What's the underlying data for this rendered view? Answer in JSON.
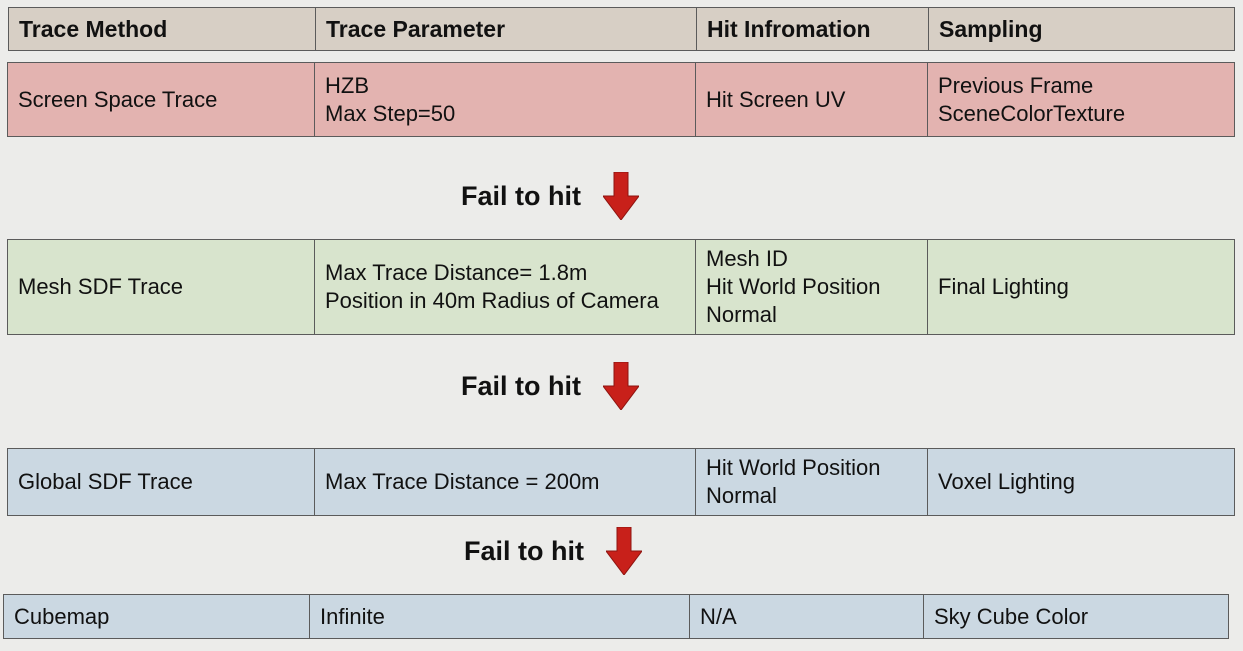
{
  "header": {
    "trace_method": "Trace Method",
    "trace_parameter": "Trace Parameter",
    "hit_information": "Hit Infromation",
    "sampling": "Sampling"
  },
  "rows": [
    {
      "method": "Screen Space Trace",
      "parameter": [
        "HZB",
        "Max Step=50"
      ],
      "hit_info": [
        "Hit Screen UV"
      ],
      "sampling": [
        "Previous Frame",
        "SceneColorTexture"
      ],
      "color": "#e3b3b0"
    },
    {
      "method": "Mesh SDF Trace",
      "parameter": [
        "Max Trace Distance= 1.8m",
        "Position in 40m Radius of Camera"
      ],
      "hit_info": [
        "Mesh ID",
        "Hit World Position",
        "Normal"
      ],
      "sampling": [
        "Final Lighting"
      ],
      "color": "#d8e4cd"
    },
    {
      "method": "Global SDF Trace",
      "parameter": [
        "Max Trace Distance = 200m"
      ],
      "hit_info": [
        "Hit World Position",
        "Normal"
      ],
      "sampling": [
        "Voxel Lighting"
      ],
      "color": "#cbd8e2"
    },
    {
      "method": "Cubemap",
      "parameter": [
        "Infinite"
      ],
      "hit_info": [
        "N/A"
      ],
      "sampling": [
        "Sky Cube Color"
      ],
      "color": "#cbd8e2"
    }
  ],
  "transitions": [
    {
      "label": "Fail to hit",
      "icon": "down-arrow-icon"
    },
    {
      "label": "Fail to hit",
      "icon": "down-arrow-icon"
    },
    {
      "label": "Fail to hit",
      "icon": "down-arrow-icon"
    }
  ],
  "colors": {
    "header_bg": "#d7cfc5",
    "arrow": "#c8201a",
    "page_bg": "#ececea"
  }
}
